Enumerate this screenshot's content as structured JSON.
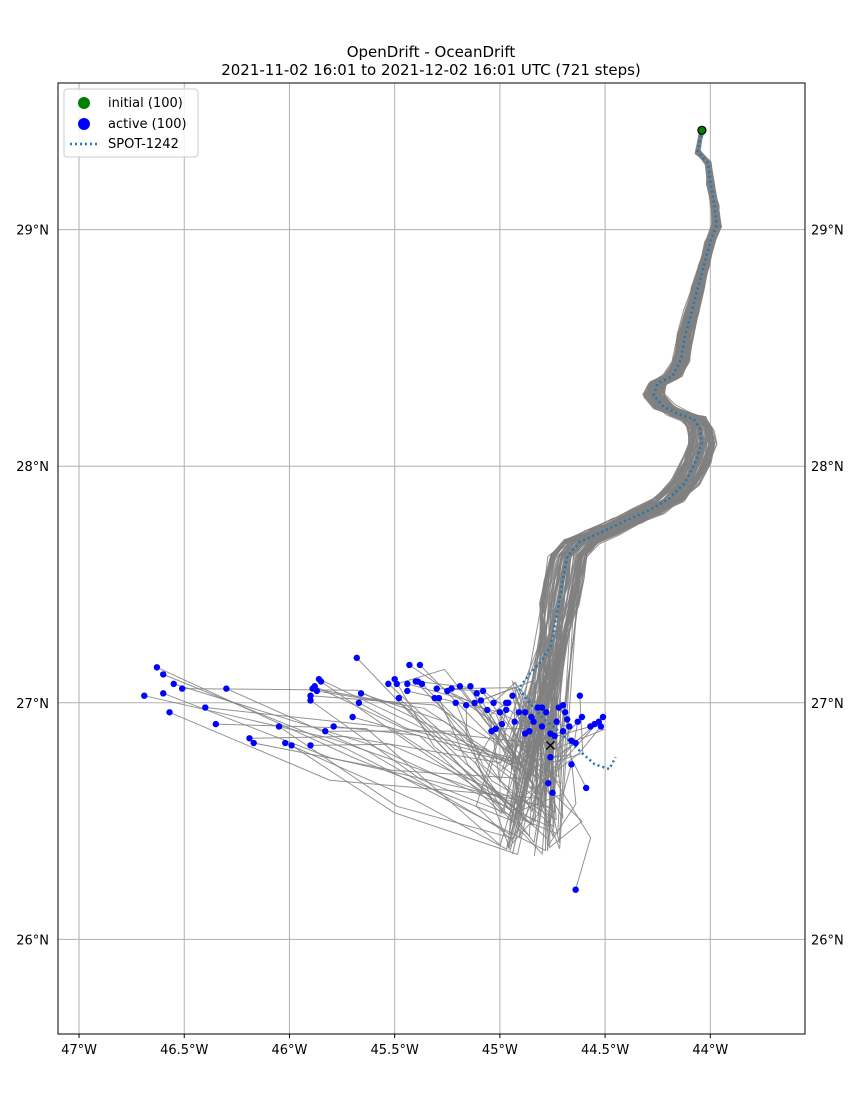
{
  "chart_data": {
    "type": "scatter",
    "title": "OpenDrift - OceanDrift",
    "subtitle": "2021-11-02 16:01 to 2021-12-02 16:01 UTC (721 steps)",
    "xlim": [
      -47.1,
      -43.55
    ],
    "ylim": [
      25.6,
      29.62
    ],
    "grid": true,
    "x_ticks": [
      {
        "value": -47.0,
        "label": "47°W"
      },
      {
        "value": -46.5,
        "label": "46.5°W"
      },
      {
        "value": -46.0,
        "label": "46°W"
      },
      {
        "value": -45.5,
        "label": "45.5°W"
      },
      {
        "value": -45.0,
        "label": "45°W"
      },
      {
        "value": -44.5,
        "label": "44.5°W"
      },
      {
        "value": -44.0,
        "label": "44°W"
      }
    ],
    "y_ticks": [
      {
        "value": 26.0,
        "label": "26°N"
      },
      {
        "value": 27.0,
        "label": "27°N"
      },
      {
        "value": 28.0,
        "label": "28°N"
      },
      {
        "value": 29.0,
        "label": "29°N"
      }
    ],
    "legend": {
      "location": "upper-left",
      "entries": [
        {
          "label": "initial (100)",
          "color": "#008000",
          "marker": "circle"
        },
        {
          "label": "active (100)",
          "color": "#0000ff",
          "marker": "circle"
        },
        {
          "label": "SPOT-1242",
          "color": "#1f77b4",
          "marker": "dotted-line"
        }
      ]
    },
    "initial_point": {
      "x": -44.04,
      "y": 29.42,
      "color": "#008000"
    },
    "drifter_end_marker": {
      "x": -44.76,
      "y": 26.82,
      "symbol": "x"
    },
    "spot_track": {
      "name": "SPOT-1242",
      "color": "#1f77b4",
      "points": [
        [
          -44.04,
          29.42
        ],
        [
          -44.06,
          29.33
        ],
        [
          -44.01,
          29.28
        ],
        [
          -44.0,
          29.2
        ],
        [
          -43.98,
          29.1
        ],
        [
          -43.97,
          29.02
        ],
        [
          -44.0,
          28.95
        ],
        [
          -44.03,
          28.85
        ],
        [
          -44.06,
          28.75
        ],
        [
          -44.09,
          28.65
        ],
        [
          -44.12,
          28.55
        ],
        [
          -44.14,
          28.45
        ],
        [
          -44.18,
          28.38
        ],
        [
          -44.25,
          28.35
        ],
        [
          -44.27,
          28.3
        ],
        [
          -44.22,
          28.25
        ],
        [
          -44.15,
          28.22
        ],
        [
          -44.08,
          28.2
        ],
        [
          -44.05,
          28.16
        ],
        [
          -44.04,
          28.1
        ],
        [
          -44.07,
          28.02
        ],
        [
          -44.12,
          27.93
        ],
        [
          -44.2,
          27.86
        ],
        [
          -44.3,
          27.81
        ],
        [
          -44.4,
          27.77
        ],
        [
          -44.52,
          27.72
        ],
        [
          -44.62,
          27.68
        ],
        [
          -44.68,
          27.62
        ],
        [
          -44.7,
          27.52
        ],
        [
          -44.72,
          27.42
        ],
        [
          -44.74,
          27.32
        ],
        [
          -44.76,
          27.24
        ],
        [
          -44.8,
          27.18
        ],
        [
          -44.86,
          27.12
        ],
        [
          -44.91,
          27.06
        ],
        [
          -44.86,
          27.0
        ],
        [
          -44.8,
          26.94
        ],
        [
          -44.72,
          26.88
        ],
        [
          -44.66,
          26.83
        ],
        [
          -44.6,
          26.78
        ],
        [
          -44.55,
          26.74
        ],
        [
          -44.48,
          26.72
        ],
        [
          -44.45,
          26.77
        ]
      ]
    },
    "trajectory_color": "#808080",
    "active_color": "#0000ff",
    "active_points": [
      [
        -46.69,
        27.03
      ],
      [
        -46.63,
        27.15
      ],
      [
        -46.6,
        27.12
      ],
      [
        -46.6,
        27.04
      ],
      [
        -46.57,
        26.96
      ],
      [
        -46.55,
        27.08
      ],
      [
        -46.51,
        27.06
      ],
      [
        -46.4,
        26.98
      ],
      [
        -46.35,
        26.91
      ],
      [
        -46.3,
        27.06
      ],
      [
        -46.19,
        26.85
      ],
      [
        -46.17,
        26.83
      ],
      [
        -46.05,
        26.9
      ],
      [
        -46.02,
        26.83
      ],
      [
        -45.99,
        26.82
      ],
      [
        -45.9,
        27.03
      ],
      [
        -45.9,
        27.01
      ],
      [
        -45.89,
        27.06
      ],
      [
        -45.87,
        27.05
      ],
      [
        -45.85,
        27.09
      ],
      [
        -45.9,
        26.82
      ],
      [
        -45.83,
        26.88
      ],
      [
        -45.79,
        26.9
      ],
      [
        -45.7,
        26.94
      ],
      [
        -45.67,
        27.0
      ],
      [
        -45.66,
        27.04
      ],
      [
        -45.68,
        27.19
      ],
      [
        -45.53,
        27.08
      ],
      [
        -45.49,
        27.08
      ],
      [
        -45.48,
        27.02
      ],
      [
        -45.44,
        27.05
      ],
      [
        -45.44,
        27.08
      ],
      [
        -45.43,
        27.16
      ],
      [
        -45.39,
        27.09
      ],
      [
        -45.38,
        27.16
      ],
      [
        -45.37,
        27.08
      ],
      [
        -45.3,
        27.06
      ],
      [
        -45.29,
        27.02
      ],
      [
        -45.23,
        27.06
      ],
      [
        -45.21,
        27.0
      ],
      [
        -45.19,
        27.07
      ],
      [
        -45.14,
        27.07
      ],
      [
        -45.12,
        27.0
      ],
      [
        -45.16,
        26.99
      ],
      [
        -45.11,
        27.04
      ],
      [
        -45.08,
        27.05
      ],
      [
        -45.06,
        26.97
      ],
      [
        -45.03,
        27.0
      ],
      [
        -45.0,
        26.96
      ],
      [
        -44.99,
        26.91
      ],
      [
        -44.97,
        26.97
      ],
      [
        -44.96,
        27.0
      ],
      [
        -44.94,
        27.03
      ],
      [
        -44.91,
        26.96
      ],
      [
        -44.88,
        26.96
      ],
      [
        -44.88,
        26.87
      ],
      [
        -44.86,
        26.88
      ],
      [
        -44.85,
        26.94
      ],
      [
        -44.82,
        26.98
      ],
      [
        -44.8,
        26.9
      ],
      [
        -44.78,
        26.96
      ],
      [
        -44.76,
        26.87
      ],
      [
        -44.76,
        26.77
      ],
      [
        -44.77,
        26.66
      ],
      [
        -44.75,
        26.62
      ],
      [
        -44.73,
        26.92
      ],
      [
        -44.72,
        26.98
      ],
      [
        -44.7,
        26.99
      ],
      [
        -44.7,
        26.88
      ],
      [
        -44.68,
        26.93
      ],
      [
        -44.67,
        26.9
      ],
      [
        -44.66,
        26.74
      ],
      [
        -44.66,
        26.84
      ],
      [
        -44.64,
        26.83
      ],
      [
        -44.63,
        26.92
      ],
      [
        -44.62,
        27.03
      ],
      [
        -44.61,
        26.94
      ],
      [
        -44.59,
        26.64
      ],
      [
        -44.57,
        26.9
      ],
      [
        -44.55,
        26.91
      ],
      [
        -44.53,
        26.92
      ],
      [
        -44.52,
        26.9
      ],
      [
        -44.51,
        26.94
      ],
      [
        -44.64,
        26.21
      ],
      [
        -45.04,
        26.88
      ],
      [
        -45.02,
        26.89
      ],
      [
        -44.93,
        26.92
      ],
      [
        -44.84,
        26.92
      ],
      [
        -44.97,
        27.0
      ],
      [
        -45.09,
        27.01
      ],
      [
        -45.25,
        27.05
      ],
      [
        -45.31,
        27.02
      ],
      [
        -45.4,
        27.09
      ],
      [
        -45.5,
        27.1
      ],
      [
        -45.86,
        27.1
      ],
      [
        -45.88,
        27.07
      ],
      [
        -44.8,
        26.98
      ],
      [
        -44.74,
        26.86
      ],
      [
        -44.69,
        26.96
      ],
      [
        -45.0,
        26.96
      ]
    ]
  }
}
